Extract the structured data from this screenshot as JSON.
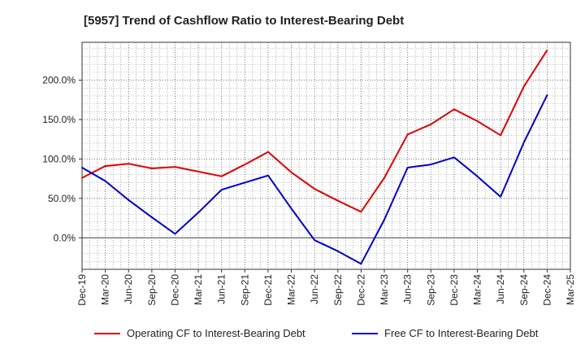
{
  "chart_data": {
    "type": "line",
    "title": "[5957]  Trend of Cashflow Ratio to Interest-Bearing Debt",
    "xlabel": "",
    "ylabel": "",
    "x_ticks": [
      "Dec-19",
      "Mar-20",
      "Jun-20",
      "Sep-20",
      "Dec-20",
      "Mar-21",
      "Jun-21",
      "Sep-21",
      "Dec-21",
      "Mar-22",
      "Jun-22",
      "Sep-22",
      "Dec-22",
      "Mar-23",
      "Jun-23",
      "Sep-23",
      "Dec-23",
      "Mar-24",
      "Jun-24",
      "Sep-24",
      "Dec-24",
      "Mar-25"
    ],
    "y_ticks": [
      0,
      50,
      100,
      150,
      200
    ],
    "y_tick_labels": [
      "0.0%",
      "50.0%",
      "100.0%",
      "150.0%",
      "200.0%"
    ],
    "ylim": [
      -40,
      248
    ],
    "grid": true,
    "legend_position": "bottom",
    "series": [
      {
        "name": "Operating CF to Interest-Bearing Debt",
        "color": "#e00000",
        "values": [
          76,
          91,
          94,
          88,
          90,
          84,
          78,
          93,
          109,
          83,
          62,
          47,
          33,
          76,
          131,
          144,
          163,
          148,
          130,
          192,
          238,
          null
        ]
      },
      {
        "name": "Free CF to Interest-Bearing Debt",
        "color": "#0000cc",
        "values": [
          89,
          72,
          48,
          26,
          5,
          32,
          61,
          70,
          79,
          37,
          -3,
          -17,
          -33,
          23,
          89,
          93,
          102,
          78,
          52,
          121,
          181,
          null
        ]
      }
    ]
  }
}
